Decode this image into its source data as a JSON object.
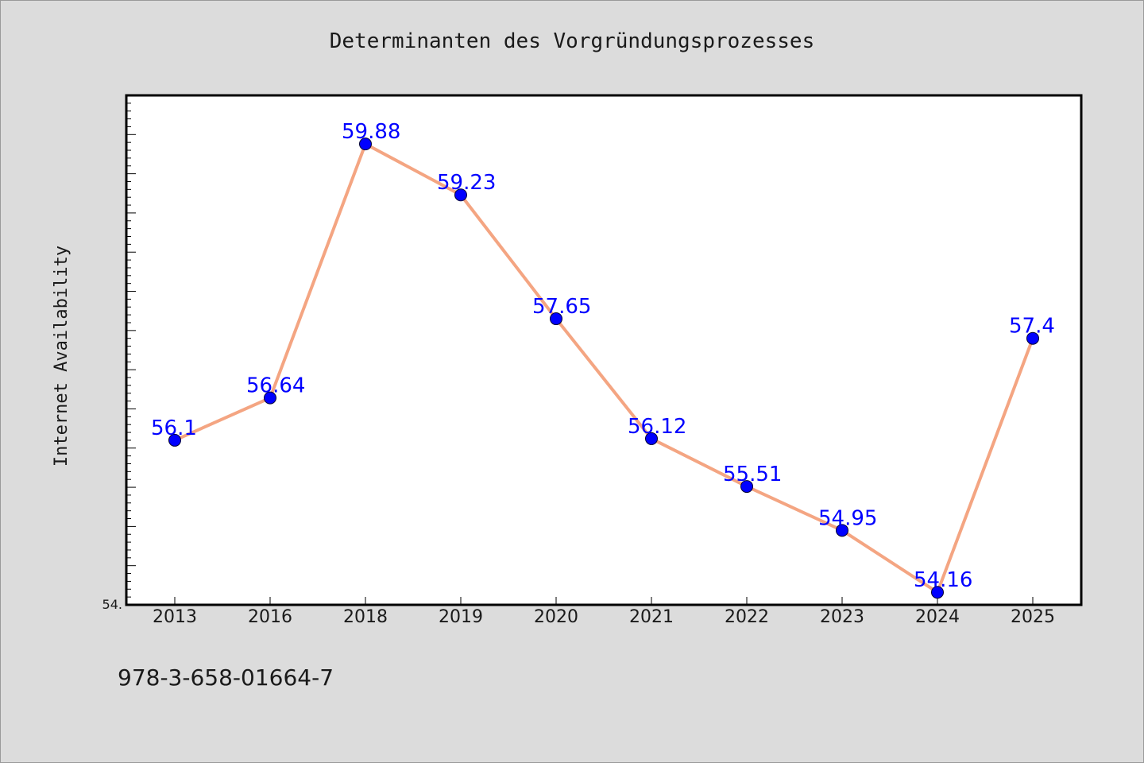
{
  "chart_data": {
    "type": "line",
    "title": "Determinanten des Vorgründungsprozesses",
    "xlabel": "",
    "ylabel": "Internet Availability",
    "categories": [
      "2013",
      "2016",
      "2018",
      "2019",
      "2020",
      "2021",
      "2022",
      "2023",
      "2024",
      "2025"
    ],
    "series": [
      {
        "values": [
          56.1,
          56.64,
          59.88,
          59.23,
          57.65,
          56.12,
          55.51,
          54.95,
          54.16,
          57.4
        ],
        "data_labels": [
          "56.1",
          "56.64",
          "59.88",
          "59.23",
          "57.65",
          "56.12",
          "55.51",
          "54.95",
          "54.16",
          "57.4"
        ]
      }
    ],
    "ylim": [
      54.0,
      60.5
    ],
    "y_tick_label": "54.",
    "grid": false,
    "legend": "none",
    "colors": {
      "line": "#f4a582",
      "marker": "#0000ff",
      "label": "#0000ff"
    }
  },
  "footer": {
    "isbn": "978-3-658-01664-7"
  }
}
